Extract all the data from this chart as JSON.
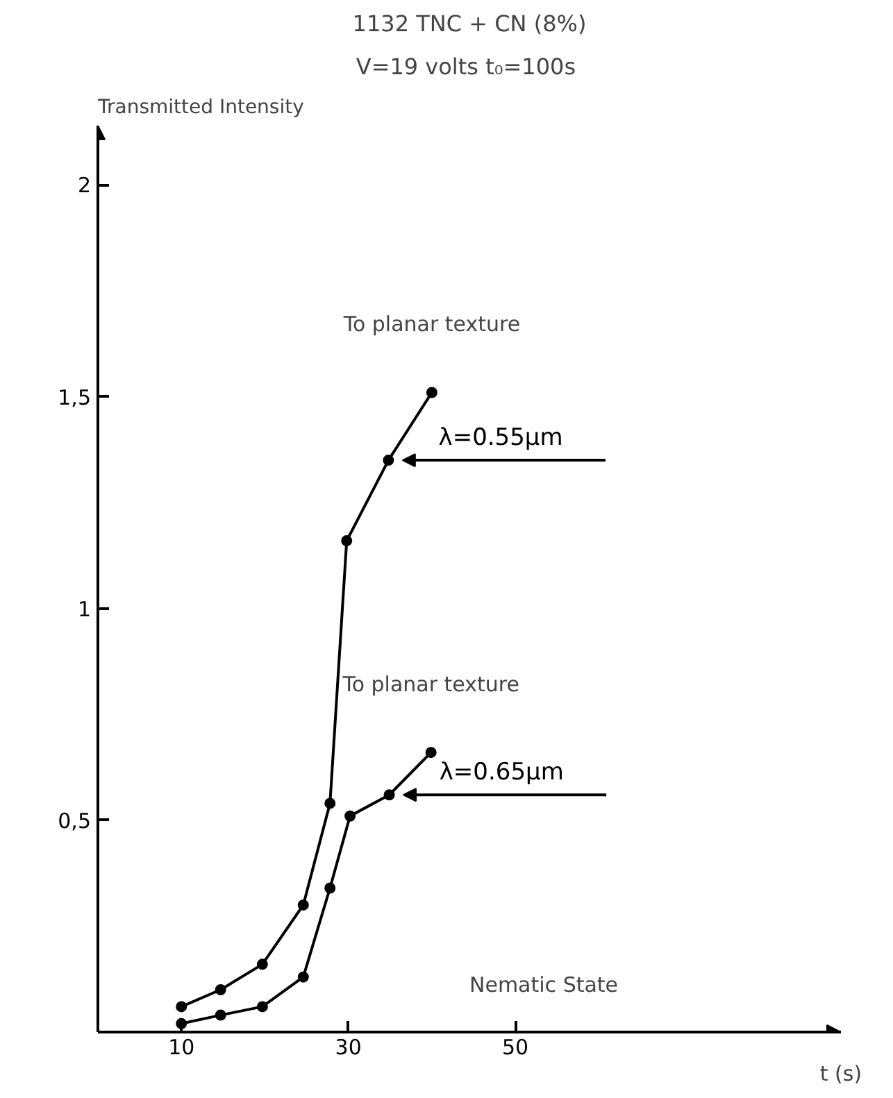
{
  "chart_data": {
    "type": "line",
    "title": "1132 TNC + CN (8%)",
    "subtitle": "V=19 volts  t₀=100s",
    "xlabel": "t (s)",
    "ylabel": "Transmitted Intensity",
    "xlim": [
      0,
      89
    ],
    "ylim": [
      0,
      2.14
    ],
    "xticks": [
      10,
      30,
      50
    ],
    "yticks": [
      {
        "value": 0.5,
        "label": "0,5"
      },
      1,
      {
        "value": 1.5,
        "label": "1,5"
      },
      2
    ],
    "marker": "circle",
    "line_style": "solid",
    "grid": false,
    "series": [
      {
        "name": "λ=0.55μm",
        "color": "#000000",
        "x": [
          10,
          14.7,
          19.7,
          24.6,
          27.8,
          29.8,
          34.8,
          40.0
        ],
        "values": [
          0.06,
          0.1,
          0.16,
          0.3,
          0.54,
          1.16,
          1.35,
          1.51
        ]
      },
      {
        "name": "λ=0.65μm",
        "color": "#000000",
        "x": [
          10,
          14.7,
          19.7,
          24.6,
          27.8,
          30.2,
          34.9,
          39.9
        ],
        "values": [
          0.02,
          0.04,
          0.06,
          0.13,
          0.34,
          0.51,
          0.56,
          0.66
        ]
      }
    ],
    "annotations": [
      "To planar texture",
      "To planar texture",
      "Nematic State"
    ]
  }
}
